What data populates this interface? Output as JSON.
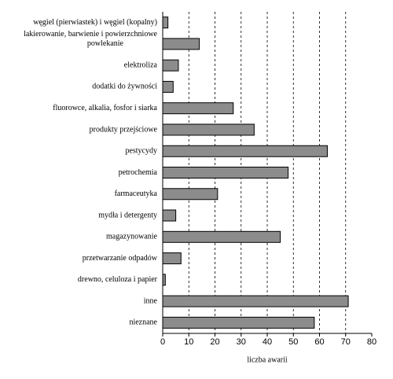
{
  "chart_data": {
    "type": "barh",
    "x_label": "liczba awarii",
    "categories": [
      "węgiel (pierwiastek) i węgiel (kopalny)",
      "lakierowanie, barwienie i powierzchniowe\npowlekanie",
      "elektroliza",
      "dodatki do żywności",
      "fluorowce, alkalia, fosfor i siarka",
      "produkty przejściowe",
      "pestycydy",
      "petrochemia",
      "farmaceutyka",
      "mydła i detergenty",
      "magazynowanie",
      "przetwarzanie odpadów",
      "drewno, celuloza i papier",
      "inne",
      "nieznane"
    ],
    "values": [
      2,
      14,
      6,
      4,
      27,
      35,
      63,
      48,
      21,
      5,
      45,
      7,
      1,
      71,
      58
    ],
    "color": "#8c8c8c",
    "xlim": [
      0,
      80
    ],
    "xticks": [
      0,
      10,
      20,
      30,
      40,
      50,
      60,
      70,
      80
    ],
    "grid": true
  }
}
